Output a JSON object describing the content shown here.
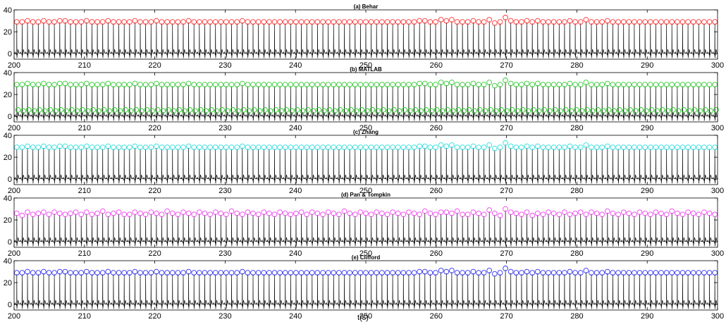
{
  "figure": {
    "xlabel": "t(s)"
  },
  "chart_data": [
    {
      "type": "line",
      "title": "(a) Behar",
      "xlim": [
        200,
        300
      ],
      "ylim": [
        -5,
        40
      ],
      "xticks": [
        200,
        210,
        220,
        230,
        240,
        250,
        260,
        270,
        280,
        290,
        300
      ],
      "yticks": [
        0,
        20,
        40
      ],
      "grid": false,
      "series": [
        {
          "role": "ecg-signal",
          "color": "#000000"
        },
        {
          "role": "detected-r-peaks",
          "marker": "circle",
          "color": "#ff3333",
          "y": [
            29,
            29,
            30,
            29,
            29,
            30,
            29,
            29,
            30,
            30,
            29,
            29,
            29,
            30,
            29,
            29,
            29,
            30,
            29,
            29,
            29,
            29,
            30,
            29,
            29,
            29,
            30,
            29,
            29,
            29,
            29,
            29,
            30,
            29,
            29,
            29,
            29,
            29,
            29,
            29,
            29,
            29,
            30,
            29,
            29,
            29,
            29,
            29,
            29,
            29,
            29,
            29,
            29,
            29,
            29,
            29,
            29,
            29,
            29,
            29,
            29,
            29,
            29,
            29,
            29,
            29,
            29,
            29,
            29,
            29,
            29,
            29,
            29,
            29,
            29,
            30,
            30,
            29,
            29,
            31,
            30,
            31,
            29,
            29,
            29,
            30,
            29,
            29,
            31,
            28,
            29,
            33,
            30,
            29,
            29,
            30,
            29,
            30,
            29,
            29,
            29,
            29,
            29,
            30,
            29,
            29,
            31,
            29,
            29,
            29,
            30,
            29,
            29,
            29,
            29,
            29,
            29,
            29,
            29,
            29,
            29,
            29,
            29,
            29,
            29,
            29,
            29,
            29,
            29,
            29,
            29
          ]
        }
      ]
    },
    {
      "type": "line",
      "title": "(b) MATLAB",
      "xlim": [
        200,
        300
      ],
      "ylim": [
        -5,
        40
      ],
      "xticks": [
        200,
        210,
        220,
        230,
        240,
        250,
        260,
        270,
        280,
        290,
        300
      ],
      "yticks": [
        0,
        20,
        40
      ],
      "grid": false,
      "series": [
        {
          "role": "ecg-signal",
          "color": "#000000"
        },
        {
          "role": "detected-r-peaks",
          "marker": "circle",
          "color": "#33cc33",
          "y": [
            29,
            29,
            30,
            29,
            29,
            30,
            29,
            29,
            30,
            30,
            29,
            29,
            29,
            30,
            29,
            29,
            29,
            30,
            29,
            29,
            29,
            29,
            30,
            29,
            29,
            29,
            30,
            29,
            29,
            29,
            29,
            29,
            30,
            29,
            29,
            29,
            29,
            29,
            29,
            29,
            29,
            29,
            30,
            29,
            29,
            29,
            29,
            29,
            29,
            29,
            29,
            29,
            29,
            29,
            29,
            29,
            29,
            29,
            29,
            29,
            29,
            29,
            29,
            29,
            29,
            29,
            29,
            29,
            29,
            29,
            29,
            29,
            29,
            29,
            29,
            30,
            30,
            29,
            29,
            31,
            30,
            31,
            29,
            29,
            29,
            30,
            29,
            29,
            31,
            28,
            29,
            33,
            30,
            29,
            29,
            30,
            29,
            30,
            29,
            29,
            29,
            29,
            29,
            30,
            29,
            29,
            31,
            29,
            29,
            29,
            30,
            29,
            29,
            29,
            29,
            29,
            29,
            29,
            29,
            29,
            29,
            29,
            29,
            29,
            29,
            29,
            29,
            29,
            29,
            29,
            29
          ]
        },
        {
          "role": "detected-secondary-peaks",
          "marker": "circle",
          "color": "#33cc33",
          "y": [
            6,
            5,
            6,
            5,
            6,
            5,
            6,
            5,
            6,
            5,
            6,
            5,
            6,
            5,
            6,
            5,
            6,
            5,
            6,
            5,
            6,
            5,
            6,
            5,
            6,
            5,
            6,
            5,
            6,
            5,
            6,
            5,
            6,
            5,
            6,
            5,
            6,
            5,
            6,
            5,
            6,
            5,
            6,
            5,
            6,
            5,
            6,
            5,
            6,
            5,
            6,
            5,
            6,
            5,
            6,
            5,
            6,
            5,
            6,
            5,
            6,
            5,
            6,
            5,
            6,
            5,
            6,
            5,
            6,
            5,
            6,
            5,
            6,
            5,
            6,
            5,
            6,
            5,
            6,
            5,
            6,
            5,
            6,
            5,
            6,
            5,
            6,
            5,
            6,
            5,
            6,
            5,
            6,
            5,
            6,
            5,
            6,
            5,
            6,
            5,
            6,
            5,
            6,
            5,
            6,
            5,
            6,
            5,
            6,
            5,
            6,
            5,
            6,
            5,
            6,
            5,
            6,
            5,
            6,
            5,
            6,
            5,
            6,
            5,
            6,
            5,
            6,
            5,
            6,
            5,
            6
          ]
        }
      ]
    },
    {
      "type": "line",
      "title": "(c) Zhang",
      "xlim": [
        200,
        300
      ],
      "ylim": [
        -5,
        40
      ],
      "xticks": [
        200,
        210,
        220,
        230,
        240,
        250,
        260,
        270,
        280,
        290,
        300
      ],
      "yticks": [
        0,
        20,
        40
      ],
      "grid": false,
      "series": [
        {
          "role": "ecg-signal",
          "color": "#000000"
        },
        {
          "role": "detected-r-peaks",
          "marker": "circle",
          "color": "#33dddd",
          "y": [
            29,
            29,
            30,
            29,
            29,
            30,
            29,
            29,
            30,
            30,
            29,
            29,
            29,
            30,
            29,
            29,
            29,
            30,
            29,
            29,
            29,
            29,
            30,
            29,
            29,
            29,
            30,
            29,
            29,
            29,
            29,
            29,
            30,
            29,
            29,
            29,
            29,
            29,
            29,
            29,
            29,
            29,
            30,
            29,
            29,
            29,
            29,
            29,
            29,
            29,
            29,
            29,
            29,
            29,
            29,
            29,
            29,
            29,
            29,
            29,
            29,
            29,
            29,
            29,
            29,
            29,
            29,
            29,
            29,
            29,
            29,
            29,
            29,
            29,
            29,
            30,
            30,
            29,
            29,
            31,
            30,
            31,
            29,
            29,
            29,
            30,
            29,
            29,
            31,
            28,
            29,
            33,
            30,
            29,
            29,
            30,
            29,
            30,
            29,
            29,
            29,
            29,
            29,
            30,
            29,
            29,
            31,
            29,
            29,
            29,
            30,
            29,
            29,
            29,
            29,
            29,
            29,
            29,
            29,
            29,
            29,
            29,
            29,
            29,
            29,
            29,
            29,
            29,
            29,
            29,
            29
          ]
        }
      ]
    },
    {
      "type": "line",
      "title": "(d) Pan & Tompkin",
      "xlim": [
        200,
        300
      ],
      "ylim": [
        -5,
        40
      ],
      "xticks": [
        200,
        210,
        220,
        230,
        240,
        250,
        260,
        270,
        280,
        290,
        300
      ],
      "yticks": [
        0,
        20,
        40
      ],
      "grid": false,
      "series": [
        {
          "role": "ecg-signal",
          "color": "#000000"
        },
        {
          "role": "detected-r-peaks",
          "marker": "circle",
          "color": "#ee44ee",
          "y": [
            26,
            24,
            27,
            25,
            26,
            27,
            25,
            27,
            26,
            25,
            26,
            27,
            25,
            27,
            25,
            26,
            28,
            25,
            26,
            27,
            25,
            25,
            27,
            26,
            25,
            27,
            26,
            25,
            28,
            26,
            25,
            27,
            26,
            25,
            27,
            26,
            25,
            27,
            26,
            25,
            28,
            26,
            25,
            27,
            26,
            25,
            27,
            26,
            25,
            27,
            26,
            25,
            26,
            27,
            25,
            27,
            26,
            25,
            27,
            26,
            25,
            28,
            26,
            25,
            27,
            26,
            25,
            27,
            26,
            25,
            27,
            26,
            25,
            27,
            26,
            25,
            28,
            26,
            25,
            27,
            27,
            26,
            28,
            25,
            25,
            27,
            26,
            25,
            29,
            26,
            24,
            30,
            27,
            26,
            25,
            27,
            24,
            26,
            25,
            27,
            26,
            25,
            27,
            25,
            26,
            27,
            25,
            27,
            26,
            25,
            28,
            26,
            25,
            27,
            26,
            25,
            27,
            26,
            25,
            27,
            26,
            25,
            28,
            26,
            25,
            27,
            26,
            25,
            27,
            26,
            25
          ]
        }
      ]
    },
    {
      "type": "line",
      "title": "(e) Clifford",
      "xlim": [
        200,
        300
      ],
      "ylim": [
        -5,
        40
      ],
      "xticks": [
        200,
        210,
        220,
        230,
        240,
        250,
        260,
        270,
        280,
        290,
        300
      ],
      "yticks": [
        0,
        20,
        40
      ],
      "grid": false,
      "series": [
        {
          "role": "ecg-signal",
          "color": "#000000"
        },
        {
          "role": "detected-r-peaks",
          "marker": "circle",
          "color": "#3333ee",
          "y": [
            29,
            29,
            30,
            29,
            29,
            30,
            29,
            29,
            30,
            30,
            29,
            29,
            29,
            30,
            29,
            29,
            29,
            30,
            29,
            29,
            29,
            29,
            30,
            29,
            29,
            29,
            30,
            29,
            29,
            29,
            29,
            29,
            30,
            29,
            29,
            29,
            29,
            29,
            29,
            29,
            29,
            29,
            30,
            29,
            29,
            29,
            29,
            29,
            29,
            29,
            29,
            29,
            29,
            29,
            29,
            29,
            29,
            29,
            29,
            29,
            29,
            29,
            29,
            29,
            29,
            29,
            29,
            29,
            29,
            29,
            29,
            29,
            29,
            29,
            29,
            30,
            30,
            29,
            29,
            31,
            30,
            31,
            29,
            29,
            29,
            30,
            29,
            29,
            31,
            28,
            29,
            33,
            30,
            29,
            29,
            30,
            29,
            30,
            29,
            29,
            29,
            29,
            29,
            30,
            29,
            29,
            31,
            29,
            29,
            29,
            30,
            29,
            29,
            29,
            29,
            29,
            29,
            29,
            29,
            29,
            29,
            29,
            29,
            29,
            29,
            29,
            29,
            29,
            29,
            29,
            29
          ]
        }
      ]
    }
  ]
}
